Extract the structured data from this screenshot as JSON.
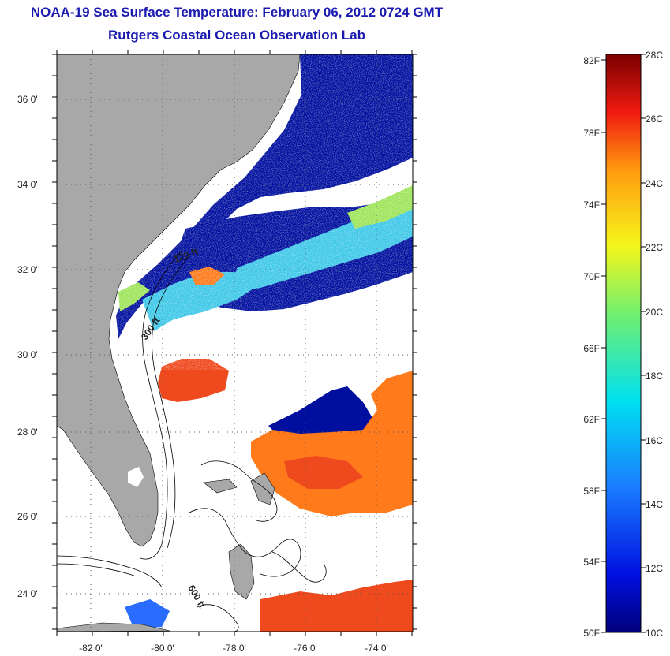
{
  "header": {
    "title": "NOAA-19 Sea Surface Temperature:  February 06, 2012 0724 GMT",
    "subtitle": "Rutgers Coastal Ocean Observation Lab"
  },
  "map": {
    "lat_ticks": [
      "36 0'",
      "34 0'",
      "32 0'",
      "30 0'",
      "28 0'",
      "26 0'",
      "24 0'"
    ],
    "lon_ticks": [
      "-82 0'",
      "-80 0'",
      "-78 0'",
      "-76 0'",
      "-74 0'"
    ],
    "lat_range": [
      23.0,
      37.0
    ],
    "lon_range": [
      -83.0,
      -73.0
    ],
    "isobath_labels": [
      "120 ft",
      "300 ft",
      "600 ft"
    ],
    "colors": {
      "land": "#a8a8a8",
      "cloud": "#ffffff",
      "cold": "#000f9e",
      "cyan": "#3fc8e8",
      "green": "#9ee45a",
      "warm": "#ef4a1e",
      "orange": "#ff7a1a"
    }
  },
  "colorbar": {
    "fahrenheit_labels": [
      "82F",
      "78F",
      "74F",
      "70F",
      "66F",
      "62F",
      "58F",
      "54F",
      "50F"
    ],
    "celsius_labels": [
      "28C",
      "26C",
      "24C",
      "22C",
      "20C",
      "18C",
      "16C",
      "14C",
      "12C",
      "10C"
    ],
    "range_c": [
      10,
      28
    ]
  }
}
